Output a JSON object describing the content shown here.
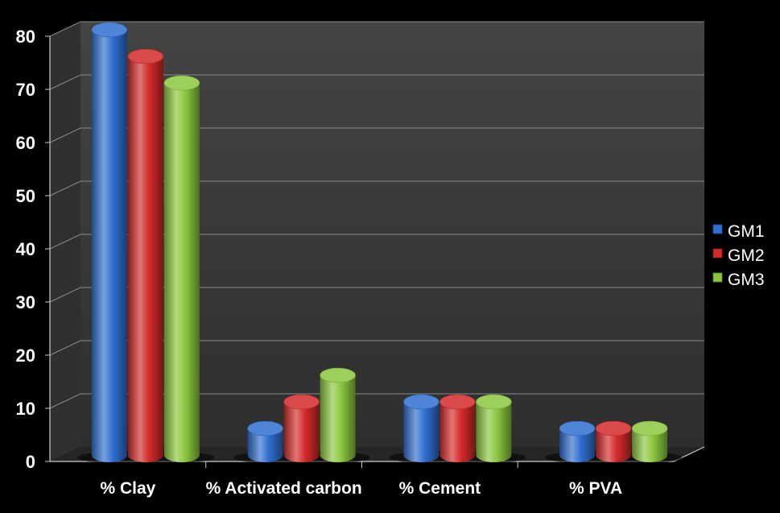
{
  "chart_data": {
    "type": "bar",
    "style": "3d-cylinder",
    "title": "",
    "xlabel": "",
    "ylabel": "",
    "categories": [
      "% Clay",
      "% Activated carbon",
      "% Cement",
      "% PVA"
    ],
    "series": [
      {
        "name": "GM1",
        "color": "#2f6fd0",
        "values": [
          80,
          5,
          10,
          5
        ]
      },
      {
        "name": "GM2",
        "color": "#d42a2a",
        "values": [
          75,
          10,
          10,
          5
        ]
      },
      {
        "name": "GM3",
        "color": "#8cc63f",
        "values": [
          70,
          15,
          10,
          5
        ]
      }
    ],
    "ylim": [
      0,
      80
    ],
    "yticks": [
      "0",
      "10",
      "20",
      "30",
      "40",
      "50",
      "60",
      "70",
      "80"
    ],
    "grid": true,
    "legend_position": "right",
    "background": "#000000",
    "wall_color": "#3a3a3a"
  }
}
